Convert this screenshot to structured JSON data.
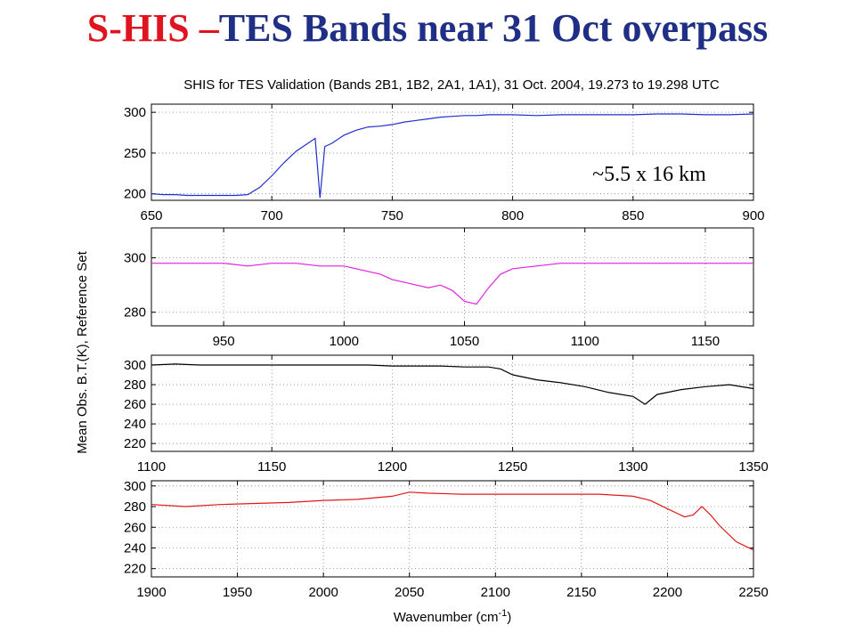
{
  "slide": {
    "title_part1": "S-HIS",
    "title_dash": "–",
    "title_part2": "TES Bands near 31 Oct overpass"
  },
  "figure": {
    "title": "SHIS for TES Validation (Bands 2B1, 1B2, 2A1, 1A1), 31 Oct. 2004, 19.273 to 19.298 UTC",
    "ylabel": "Mean Obs. B.T.(K), Reference Set",
    "xlabel": "Wavenumber (cm",
    "xlabel_sup": "-1",
    "xlabel_end": ")",
    "annotation": "~5.5 x 16 km"
  },
  "chart_data": [
    {
      "type": "line",
      "band": "2B1",
      "color": "#1f2fd0",
      "xlim": [
        650,
        900
      ],
      "ylim": [
        192,
        310
      ],
      "xticks": [
        650,
        700,
        750,
        800,
        850,
        900
      ],
      "yticks": [
        200,
        250,
        300
      ],
      "grid": true,
      "x": [
        650,
        655,
        660,
        665,
        670,
        675,
        680,
        685,
        690,
        695,
        700,
        705,
        710,
        715,
        718,
        720,
        722,
        725,
        730,
        735,
        740,
        745,
        750,
        755,
        760,
        765,
        770,
        775,
        780,
        785,
        790,
        795,
        800,
        810,
        820,
        830,
        840,
        850,
        860,
        870,
        880,
        890,
        900
      ],
      "y": [
        200,
        199,
        199,
        198,
        198,
        198,
        198,
        198,
        199,
        208,
        222,
        238,
        252,
        262,
        268,
        195,
        258,
        262,
        272,
        278,
        282,
        283,
        285,
        288,
        290,
        292,
        294,
        295,
        296,
        296,
        297,
        297,
        297,
        296,
        297,
        297,
        297,
        297,
        298,
        298,
        297,
        297,
        298
      ]
    },
    {
      "type": "line",
      "band": "1B2",
      "color": "#e020e0",
      "xlim": [
        920,
        1170
      ],
      "ylim": [
        275,
        311
      ],
      "xticks": [
        950,
        1000,
        1050,
        1100,
        1150
      ],
      "yticks": [
        280,
        300
      ],
      "grid": true,
      "x": [
        920,
        930,
        940,
        950,
        960,
        970,
        980,
        990,
        1000,
        1005,
        1010,
        1015,
        1020,
        1025,
        1030,
        1035,
        1040,
        1045,
        1050,
        1055,
        1060,
        1065,
        1070,
        1080,
        1090,
        1100,
        1110,
        1120,
        1130,
        1140,
        1150,
        1160,
        1170
      ],
      "y": [
        298,
        298,
        298,
        298,
        297,
        298,
        298,
        297,
        297,
        296,
        295,
        294,
        292,
        291,
        290,
        289,
        290,
        288,
        284,
        283,
        289,
        294,
        296,
        297,
        298,
        298,
        298,
        298,
        298,
        298,
        298,
        298,
        298
      ]
    },
    {
      "type": "line",
      "band": "2A1",
      "color": "#000000",
      "xlim": [
        1100,
        1350
      ],
      "ylim": [
        212,
        310
      ],
      "xticks": [
        1100,
        1150,
        1200,
        1250,
        1300,
        1350
      ],
      "yticks": [
        220,
        240,
        260,
        280,
        300
      ],
      "grid": true,
      "x": [
        1100,
        1110,
        1120,
        1130,
        1140,
        1150,
        1160,
        1170,
        1180,
        1190,
        1200,
        1210,
        1220,
        1230,
        1240,
        1245,
        1250,
        1260,
        1270,
        1280,
        1290,
        1300,
        1305,
        1310,
        1320,
        1330,
        1340,
        1350
      ],
      "y": [
        300,
        301,
        300,
        300,
        300,
        300,
        300,
        300,
        300,
        300,
        299,
        299,
        299,
        298,
        298,
        296,
        290,
        285,
        282,
        278,
        272,
        268,
        260,
        270,
        275,
        278,
        280,
        276
      ]
    },
    {
      "type": "line",
      "band": "1A1",
      "color": "#e01818",
      "xlim": [
        1900,
        2250
      ],
      "ylim": [
        212,
        305
      ],
      "xticks": [
        1900,
        1950,
        2000,
        2050,
        2100,
        2150,
        2200,
        2250
      ],
      "yticks": [
        220,
        240,
        260,
        280,
        300
      ],
      "grid": true,
      "x": [
        1900,
        1920,
        1940,
        1960,
        1980,
        2000,
        2020,
        2040,
        2050,
        2060,
        2080,
        2100,
        2120,
        2140,
        2160,
        2180,
        2190,
        2200,
        2210,
        2215,
        2220,
        2225,
        2230,
        2240,
        2250
      ],
      "y": [
        282,
        280,
        282,
        283,
        284,
        286,
        287,
        290,
        294,
        293,
        292,
        292,
        292,
        292,
        292,
        290,
        286,
        278,
        270,
        272,
        280,
        272,
        262,
        246,
        238
      ]
    }
  ]
}
